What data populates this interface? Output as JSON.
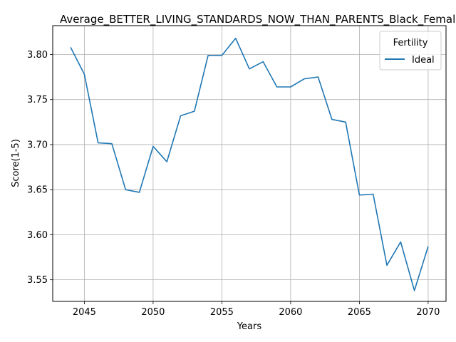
{
  "chart_data": {
    "type": "line",
    "title": "Average_BETTER_LIVING_STANDARDS_NOW_THAN_PARENTS_Black_Female_",
    "xlabel": "Years",
    "ylabel": "Score(1-5)",
    "xlim": [
      2042.7,
      2071.3
    ],
    "ylim": [
      3.526,
      3.832
    ],
    "xticks": [
      2045,
      2050,
      2055,
      2060,
      2065,
      2070
    ],
    "yticks": [
      3.55,
      3.6,
      3.65,
      3.7,
      3.75,
      3.8
    ],
    "ytick_labels": [
      "3.55",
      "3.60",
      "3.65",
      "3.70",
      "3.75",
      "3.80"
    ],
    "grid": true,
    "legend": {
      "title": "Fertility",
      "position": "top-right"
    },
    "x": [
      2044,
      2045,
      2046,
      2047,
      2048,
      2049,
      2050,
      2051,
      2052,
      2053,
      2054,
      2055,
      2056,
      2057,
      2058,
      2059,
      2060,
      2061,
      2062,
      2063,
      2064,
      2065,
      2066,
      2067,
      2068,
      2069,
      2070
    ],
    "series": [
      {
        "name": "Ideal",
        "color": "#1f77b4",
        "values": [
          3.808,
          3.778,
          3.702,
          3.701,
          3.65,
          3.647,
          3.698,
          3.681,
          3.732,
          3.737,
          3.799,
          3.799,
          3.818,
          3.784,
          3.792,
          3.764,
          3.764,
          3.773,
          3.775,
          3.728,
          3.725,
          3.644,
          3.645,
          3.566,
          3.592,
          3.538,
          3.587
        ]
      }
    ]
  }
}
